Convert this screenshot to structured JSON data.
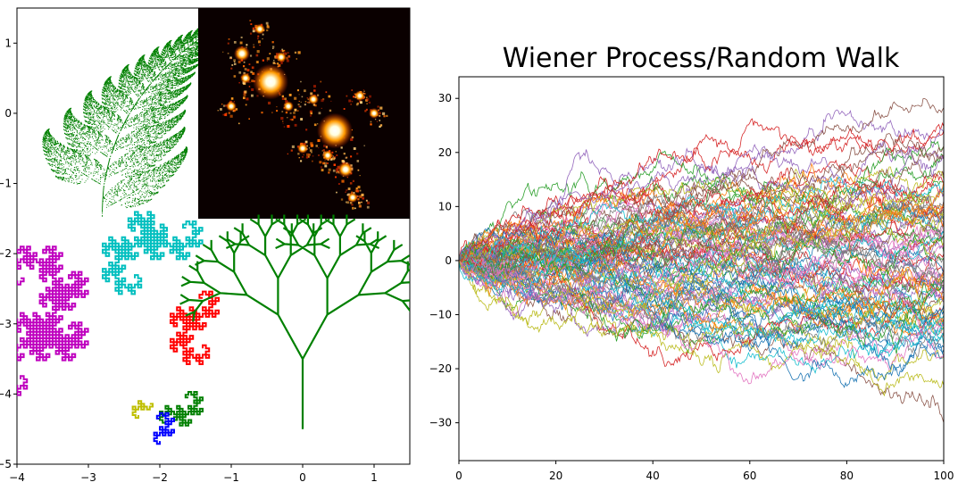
{
  "chart_data": [
    {
      "type": "scatter",
      "subplot": "left",
      "title": "",
      "xlim": [
        -4,
        1.5
      ],
      "ylim": [
        -5,
        1.5
      ],
      "xticks": [
        "−4",
        "−3",
        "−2",
        "−1",
        "0",
        "1"
      ],
      "yticks": [
        "−5",
        "−4",
        "−3",
        "−2",
        "−1",
        "0",
        "1"
      ],
      "grid": false,
      "elements": [
        {
          "name": "barnsley-fern",
          "color": "#008000",
          "x_range": [
            -3.8,
            -1.6
          ],
          "y_range": [
            -1.5,
            1.4
          ]
        },
        {
          "name": "julia-set-heatmap",
          "colormap": "afmhot",
          "x_range": [
            -1.5,
            1.5
          ],
          "y_range": [
            -1.5,
            1.5
          ]
        },
        {
          "name": "dragon-curves",
          "colors": [
            "#bf00bf",
            "#00bfbf",
            "#ff0000",
            "#008000",
            "#0000ff",
            "#bfbf00"
          ],
          "x_range": [
            -4,
            -1
          ],
          "y_range": [
            -4.8,
            -2.1
          ]
        },
        {
          "name": "fractal-tree",
          "color": "#008000",
          "x_range": [
            -1.3,
            1.3
          ],
          "y_range": [
            -4.5,
            -1.8
          ]
        }
      ]
    },
    {
      "type": "line",
      "subplot": "right",
      "title": "Wiener Process/Random Walk",
      "xlabel": "",
      "ylabel": "",
      "xlim": [
        0,
        100
      ],
      "ylim": [
        -37,
        34
      ],
      "xticks": [
        "0",
        "20",
        "40",
        "60",
        "80",
        "100"
      ],
      "yticks": [
        "−30",
        "−20",
        "−10",
        "0",
        "10",
        "20",
        "30"
      ],
      "grid": false,
      "n_series": 100,
      "start": [
        0,
        0
      ],
      "end_range": [
        -34,
        30
      ],
      "colors": [
        "#1f77b4",
        "#ff7f0e",
        "#2ca02c",
        "#d62728",
        "#9467bd",
        "#8c564b",
        "#e377c2",
        "#7f7f7f",
        "#bcbd22",
        "#17becf"
      ]
    }
  ]
}
